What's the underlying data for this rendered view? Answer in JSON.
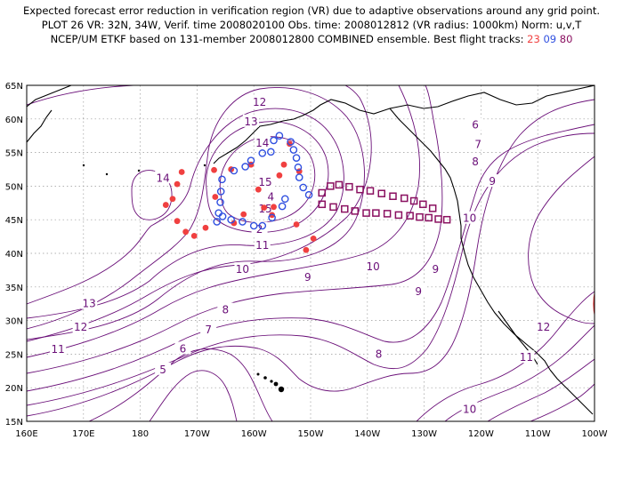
{
  "title": {
    "line1": "Expected forecast error reduction in verification region (VR) due to adaptive observations around any grid point.",
    "line2": "PLOT 26 VR: 32N, 34W, Verif. time 2008020100 Obs. time: 2008012812 (VR radius: 1000km) Norm: u,v,T",
    "line3_prefix": "NCEP/UM ETKF based on 131-member 2008012800 COMBINED ensemble.  Best flight tracks:",
    "track_a": "23",
    "track_b": "09",
    "track_c": "80"
  },
  "colors": {
    "contour": "#6a0f78",
    "track_a": "#f04040",
    "track_b": "#3050e0",
    "track_c": "#8a1060",
    "coast": "#000000",
    "grid": "#999999",
    "vr_circle": "#e03030"
  },
  "map": {
    "lon_min": 160,
    "lon_max": 260,
    "lat_min": 15,
    "lat_max": 65,
    "lon_labels": [
      "160E",
      "170E",
      "180",
      "170W",
      "160W",
      "150W",
      "140W",
      "130W",
      "120W",
      "110W",
      "100W"
    ],
    "lat_labels": [
      "15N",
      "20N",
      "25N",
      "30N",
      "35N",
      "40N",
      "45N",
      "50N",
      "55N",
      "60N",
      "65N"
    ]
  },
  "contour_labels": [
    {
      "text": "12",
      "lon": -159,
      "lat": 62.5
    },
    {
      "text": "13",
      "lon": -160.5,
      "lat": 59.6
    },
    {
      "text": "14",
      "lon": -158.5,
      "lat": 56.4
    },
    {
      "text": "14",
      "lon": -176,
      "lat": 51.2
    },
    {
      "text": "15",
      "lon": -158,
      "lat": 50.6
    },
    {
      "text": "15",
      "lon": -158,
      "lat": 46.6
    },
    {
      "text": "4",
      "lon": -157,
      "lat": 48.4
    },
    {
      "text": "2",
      "lon": -159,
      "lat": 43.6
    },
    {
      "text": "11",
      "lon": -158.5,
      "lat": 41.2
    },
    {
      "text": "10",
      "lon": -162,
      "lat": 37.6
    },
    {
      "text": "9",
      "lon": -150.5,
      "lat": 36.4
    },
    {
      "text": "8",
      "lon": -165,
      "lat": 31.6
    },
    {
      "text": "7",
      "lon": -168,
      "lat": 28.6
    },
    {
      "text": "6",
      "lon": -172.5,
      "lat": 25.8
    },
    {
      "text": "5",
      "lon": -176,
      "lat": 22.7
    },
    {
      "text": "13",
      "lon": -189,
      "lat": 32.5
    },
    {
      "text": "12",
      "lon": -190.5,
      "lat": 29.0
    },
    {
      "text": "11",
      "lon": -194.5,
      "lat": 25.7
    },
    {
      "text": "10",
      "lon": -139,
      "lat": 38.0
    },
    {
      "text": "9",
      "lon": -131,
      "lat": 34.3
    },
    {
      "text": "9",
      "lon": -128,
      "lat": 37.6
    },
    {
      "text": "8",
      "lon": -138,
      "lat": 25.0
    },
    {
      "text": "10",
      "lon": -122,
      "lat": 45.2
    },
    {
      "text": "9",
      "lon": -118,
      "lat": 50.7
    },
    {
      "text": "8",
      "lon": -121,
      "lat": 53.6
    },
    {
      "text": "7",
      "lon": -120.5,
      "lat": 56.2
    },
    {
      "text": "6",
      "lon": -121,
      "lat": 59.1
    },
    {
      "text": "12",
      "lon": -109,
      "lat": 29.0
    },
    {
      "text": "11",
      "lon": -112,
      "lat": 24.5
    },
    {
      "text": "10",
      "lon": -122,
      "lat": 16.8
    }
  ],
  "track_a_points": [
    [
      -175.5,
      47.2
    ],
    [
      -173.5,
      50.3
    ],
    [
      -172.7,
      52.1
    ],
    [
      -174.3,
      48.1
    ],
    [
      -173.5,
      44.8
    ],
    [
      -172,
      43.2
    ],
    [
      -170.5,
      42.6
    ],
    [
      -168.5,
      43.8
    ],
    [
      -167,
      52.4
    ],
    [
      -166.8,
      48.4
    ],
    [
      -164,
      52.5
    ],
    [
      -163.5,
      44.5
    ],
    [
      -160.5,
      53.2
    ],
    [
      -161.8,
      45.8
    ],
    [
      -159.2,
      49.5
    ],
    [
      -158.2,
      46.8
    ],
    [
      -156.8,
      45.7
    ],
    [
      -155.5,
      51.6
    ],
    [
      -154.7,
      53.2
    ],
    [
      -153.7,
      56.3
    ],
    [
      -152.5,
      44.3
    ],
    [
      -152,
      52.2
    ],
    [
      -149.5,
      42.2
    ],
    [
      -150.8,
      40.5
    ],
    [
      -156.5,
      46.9
    ]
  ],
  "track_b_points": [
    [
      -166.5,
      44.7
    ],
    [
      -166.2,
      46.0
    ],
    [
      -165.9,
      47.6
    ],
    [
      -165.8,
      49.2
    ],
    [
      -165.6,
      51.0
    ],
    [
      -163.5,
      52.3
    ],
    [
      -161.5,
      52.9
    ],
    [
      -160.5,
      53.8
    ],
    [
      -158.5,
      54.9
    ],
    [
      -157,
      55.1
    ],
    [
      -156.5,
      56.8
    ],
    [
      -155.5,
      57.5
    ],
    [
      -153.5,
      56.6
    ],
    [
      -153,
      55.4
    ],
    [
      -152.5,
      54.2
    ],
    [
      -152.2,
      52.8
    ],
    [
      -152,
      51.3
    ],
    [
      -151.3,
      49.8
    ],
    [
      -150.3,
      48.7
    ],
    [
      -154.5,
      48.1
    ],
    [
      -155,
      47.0
    ],
    [
      -156.8,
      45.3
    ],
    [
      -158.5,
      44.1
    ],
    [
      -160,
      44.1
    ],
    [
      -162,
      44.7
    ],
    [
      -164,
      45.0
    ],
    [
      -165.5,
      45.5
    ]
  ],
  "track_c_points": [
    [
      -148,
      49.0
    ],
    [
      -146.5,
      50.0
    ],
    [
      -145,
      50.2
    ],
    [
      -143.2,
      49.9
    ],
    [
      -141.3,
      49.5
    ],
    [
      -139.5,
      49.3
    ],
    [
      -137.5,
      48.9
    ],
    [
      -135.5,
      48.5
    ],
    [
      -133.5,
      48.2
    ],
    [
      -131.8,
      47.8
    ],
    [
      -130.2,
      47.3
    ],
    [
      -128.5,
      46.7
    ],
    [
      -148,
      47.3
    ],
    [
      -146,
      46.9
    ],
    [
      -144,
      46.6
    ],
    [
      -142.2,
      46.3
    ],
    [
      -140.2,
      46.0
    ],
    [
      -138.5,
      46.0
    ],
    [
      -136.5,
      45.9
    ],
    [
      -134.5,
      45.7
    ],
    [
      -132.5,
      45.6
    ],
    [
      -130.8,
      45.4
    ],
    [
      -129.2,
      45.3
    ],
    [
      -127.5,
      45.1
    ],
    [
      -126,
      45.0
    ]
  ]
}
